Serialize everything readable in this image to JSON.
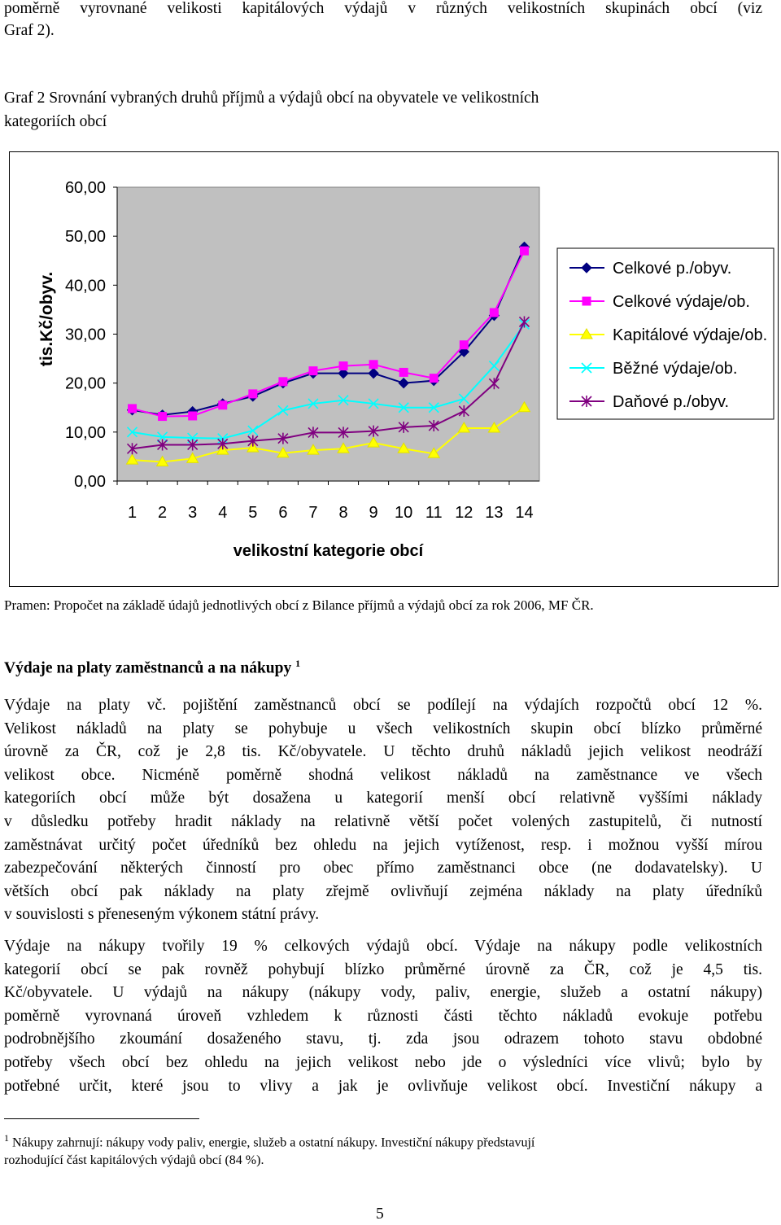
{
  "intro_text": "poměrně vyrovnané velikosti kapitálových výdajů v různých velikostních skupinách obcí (viz",
  "intro_text_2": "Graf 2).",
  "figure_title_1": "Graf 2 Srovnání vybraných druhů příjmů a výdajů obcí na obyvatele ve velikostních",
  "figure_title_2": "kategoriích obcí",
  "chart_data": {
    "type": "line",
    "title": "",
    "xlabel": "velikostní kategorie obcí",
    "ylabel": "tis.Kč/obyv.",
    "ylim": [
      0,
      60
    ],
    "y_ticks": [
      "0,00",
      "10,00",
      "20,00",
      "30,00",
      "40,00",
      "50,00",
      "60,00"
    ],
    "x": [
      "1",
      "2",
      "3",
      "4",
      "5",
      "6",
      "7",
      "8",
      "9",
      "10",
      "11",
      "12",
      "13",
      "14"
    ],
    "grid": false,
    "legend_position": "right",
    "series": [
      {
        "name": "Celkové p./obyv.",
        "marker": "diamond",
        "line_color": "#000080",
        "marker_color": "#000080",
        "values": [
          14.5,
          13.5,
          14.2,
          15.8,
          17.3,
          20.0,
          22.0,
          22.0,
          22.0,
          20.0,
          20.5,
          26.4,
          33.8,
          47.8
        ]
      },
      {
        "name": "Celkové výdaje/ob.",
        "marker": "square",
        "line_color": "#ff00ff",
        "marker_color": "#ff00ff",
        "values": [
          14.8,
          13.2,
          13.3,
          15.5,
          17.8,
          20.3,
          22.5,
          23.5,
          23.8,
          22.2,
          21.0,
          27.8,
          34.4,
          47.0
        ]
      },
      {
        "name": "Kapitálové výdaje/ob.",
        "marker": "triangle",
        "line_color": "#ffff00",
        "marker_color": "#ffff00",
        "values": [
          4.3,
          3.9,
          4.6,
          6.3,
          6.8,
          5.7,
          6.3,
          6.6,
          7.8,
          6.6,
          5.6,
          10.8,
          10.8,
          15.0
        ]
      },
      {
        "name": "Běžné výdaje/ob.",
        "marker": "x",
        "line_color": "#00ffff",
        "marker_color": "#00ffff",
        "values": [
          10.0,
          9.0,
          8.8,
          8.7,
          10.3,
          14.4,
          15.8,
          16.5,
          15.8,
          15.0,
          15.0,
          16.8,
          23.5,
          32.0
        ]
      },
      {
        "name": "Daňové p./obyv.",
        "marker": "asterisk",
        "line_color": "#800080",
        "marker_color": "#800080",
        "values": [
          6.6,
          7.4,
          7.4,
          7.6,
          8.2,
          8.7,
          9.9,
          9.9,
          10.2,
          11.0,
          11.3,
          14.3,
          19.9,
          32.5
        ]
      }
    ]
  },
  "source_note": "Pramen: Propočet na základě údajů jednotlivých obcí z Bilance příjmů a výdajů obcí za rok 2006, MF ČR.",
  "section_heading": "Výdaje na platy zaměstnanců a na nákupy",
  "section_heading_sup": "1",
  "para1_lines": [
    "Výdaje na platy vč. pojištění zaměstnanců obcí se podílejí na výdajích rozpočtů obcí 12 %.",
    "Velikost nákladů na platy se pohybuje u všech velikostních skupin obcí blízko průměrné",
    "úrovně za ČR, což je 2,8 tis. Kč/obyvatele. U těchto druhů nákladů jejich velikost neodráží",
    "velikost obce. Nicméně poměrně shodná velikost nákladů na zaměstnance ve všech",
    "kategoriích obcí může být dosažena u kategorií menší obcí relativně vyššími náklady",
    "v důsledku potřeby hradit náklady na relativně větší počet volených zastupitelů, či nutností",
    "zaměstnávat určitý počet úředníků bez ohledu na jejich vytíženost, resp. i možnou vyšší mírou",
    "zabezpečování některých činností pro obec přímo zaměstnanci obce (ne dodavatelsky). U",
    "větších obcí pak náklady na platy zřejmě ovlivňují zejména náklady na platy úředníků",
    "v souvislosti s přeneseným výkonem státní právy."
  ],
  "para2_lines": [
    "Výdaje na nákupy tvořily 19 % celkových výdajů obcí. Výdaje na nákupy  podle velikostních",
    "kategorií obcí se pak rovněž pohybují blízko průměrné úrovně za ČR, což je 4,5 tis.",
    "Kč/obyvatele. U výdajů na nákupy (nákupy vody, paliv, energie, služeb a ostatní nákupy)",
    "poměrně vyrovnaná úroveň vzhledem k různosti části těchto nákladů evokuje potřebu",
    "podrobnějšího zkoumání dosaženého stavu, tj. zda jsou odrazem tohoto stavu obdobné",
    "potřeby všech obcí bez ohledu na jejich velikost nebo jde o výsledníci více vlivů; bylo by",
    "potřebné určit, které jsou to vlivy a jak je ovlivňuje velikost obcí. Investiční nákupy a"
  ],
  "footnote_number": "1",
  "footnote_lines": [
    "Nákupy zahrnují: nákupy vody paliv, energie, služeb a ostatní nákupy. Investiční nákupy představují",
    "rozhodující část kapitálových výdajů obcí (84 %)."
  ],
  "page_number": "5"
}
